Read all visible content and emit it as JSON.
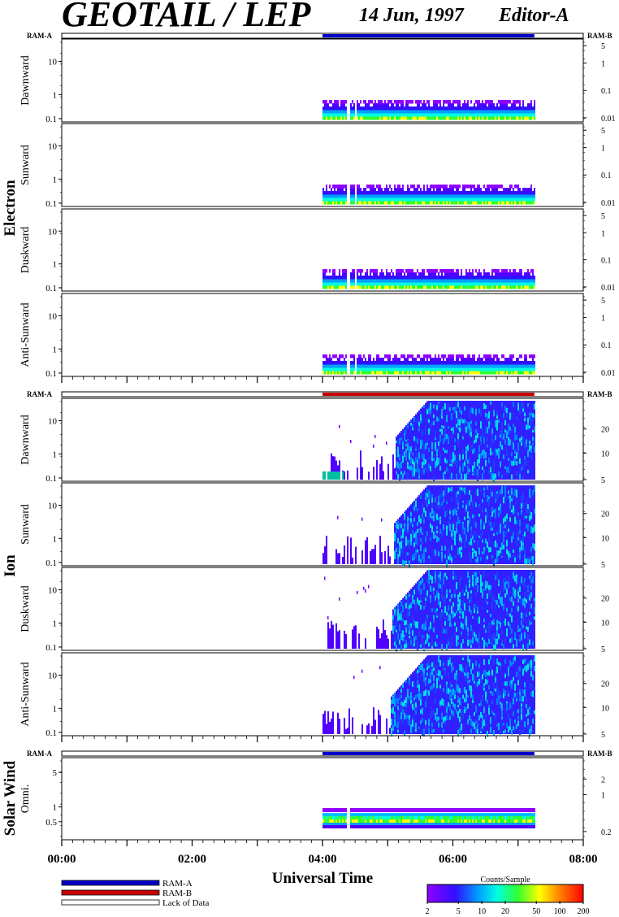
{
  "header": {
    "title": "GEOTAIL / LEP",
    "date": "14 Jun, 1997",
    "editor": "Editor-A"
  },
  "chart_data": {
    "type": "heatmap",
    "x_axis": {
      "label": "Universal Time",
      "ticks": [
        "00:00",
        "02:00",
        "04:00",
        "06:00",
        "08:00"
      ],
      "range_hours": [
        0,
        8
      ]
    },
    "groups": [
      {
        "name": "Electron",
        "mode_left": "RAM-A",
        "mode_right": "RAM-B",
        "mode_bar_color": "#0000c8",
        "panels": [
          {
            "name": "Dawnward",
            "left_ticks": [
              "10",
              "1",
              "0.1"
            ],
            "right_ticks": [
              "5",
              "1",
              "0.1",
              "0.01"
            ]
          },
          {
            "name": "Sunward",
            "left_ticks": [
              "10",
              "1",
              "0.1"
            ],
            "right_ticks": [
              "5",
              "1",
              "0.1",
              "0.01"
            ]
          },
          {
            "name": "Duskward",
            "left_ticks": [
              "10",
              "1",
              "0.1"
            ],
            "right_ticks": [
              "5",
              "1",
              "0.1",
              "0.01"
            ]
          },
          {
            "name": "Anti-Sunward",
            "left_ticks": [
              "10",
              "1",
              "0.1"
            ],
            "right_ticks": [
              "5",
              "1",
              "0.1",
              "0.01"
            ]
          }
        ]
      },
      {
        "name": "Ion",
        "mode_left": "RAM-A",
        "mode_right": "RAM-B",
        "mode_bar_color": "#c80000",
        "panels": [
          {
            "name": "Dawnward",
            "left_ticks": [
              "10",
              "1",
              "0.1"
            ],
            "right_ticks": [
              "20",
              "10",
              "5"
            ]
          },
          {
            "name": "Sunward",
            "left_ticks": [
              "10",
              "1",
              "0.1"
            ],
            "right_ticks": [
              "20",
              "10",
              "5"
            ]
          },
          {
            "name": "Duskward",
            "left_ticks": [
              "10",
              "1",
              "0.1"
            ],
            "right_ticks": [
              "20",
              "10",
              "5"
            ]
          },
          {
            "name": "Anti-Sunward",
            "left_ticks": [
              "10",
              "1",
              "0.1"
            ],
            "right_ticks": [
              "20",
              "10",
              "5"
            ]
          }
        ]
      },
      {
        "name": "Solar Wind",
        "mode_left": "RAM-A",
        "mode_right": "RAM-B",
        "mode_bar_color": "#0000c8",
        "panels": [
          {
            "name": "Omni.",
            "left_ticks": [
              "5",
              "1",
              "0.5"
            ],
            "right_ticks": [
              "2",
              "1",
              "0.2"
            ]
          }
        ]
      }
    ],
    "data_coverage": {
      "start_hour": 4.0,
      "end_hour": 7.25
    },
    "legend": {
      "items": [
        {
          "label": "RAM-A",
          "color": "#0000c8"
        },
        {
          "label": "RAM-B",
          "color": "#c80000"
        },
        {
          "label": "Lack of Data",
          "color": "#ffffff"
        }
      ]
    },
    "colorbar": {
      "title": "Counts/Sample",
      "ticks": [
        "2",
        "5",
        "10",
        "20",
        "50",
        "100",
        "200"
      ],
      "scale": "log",
      "range": [
        2,
        200
      ]
    }
  }
}
